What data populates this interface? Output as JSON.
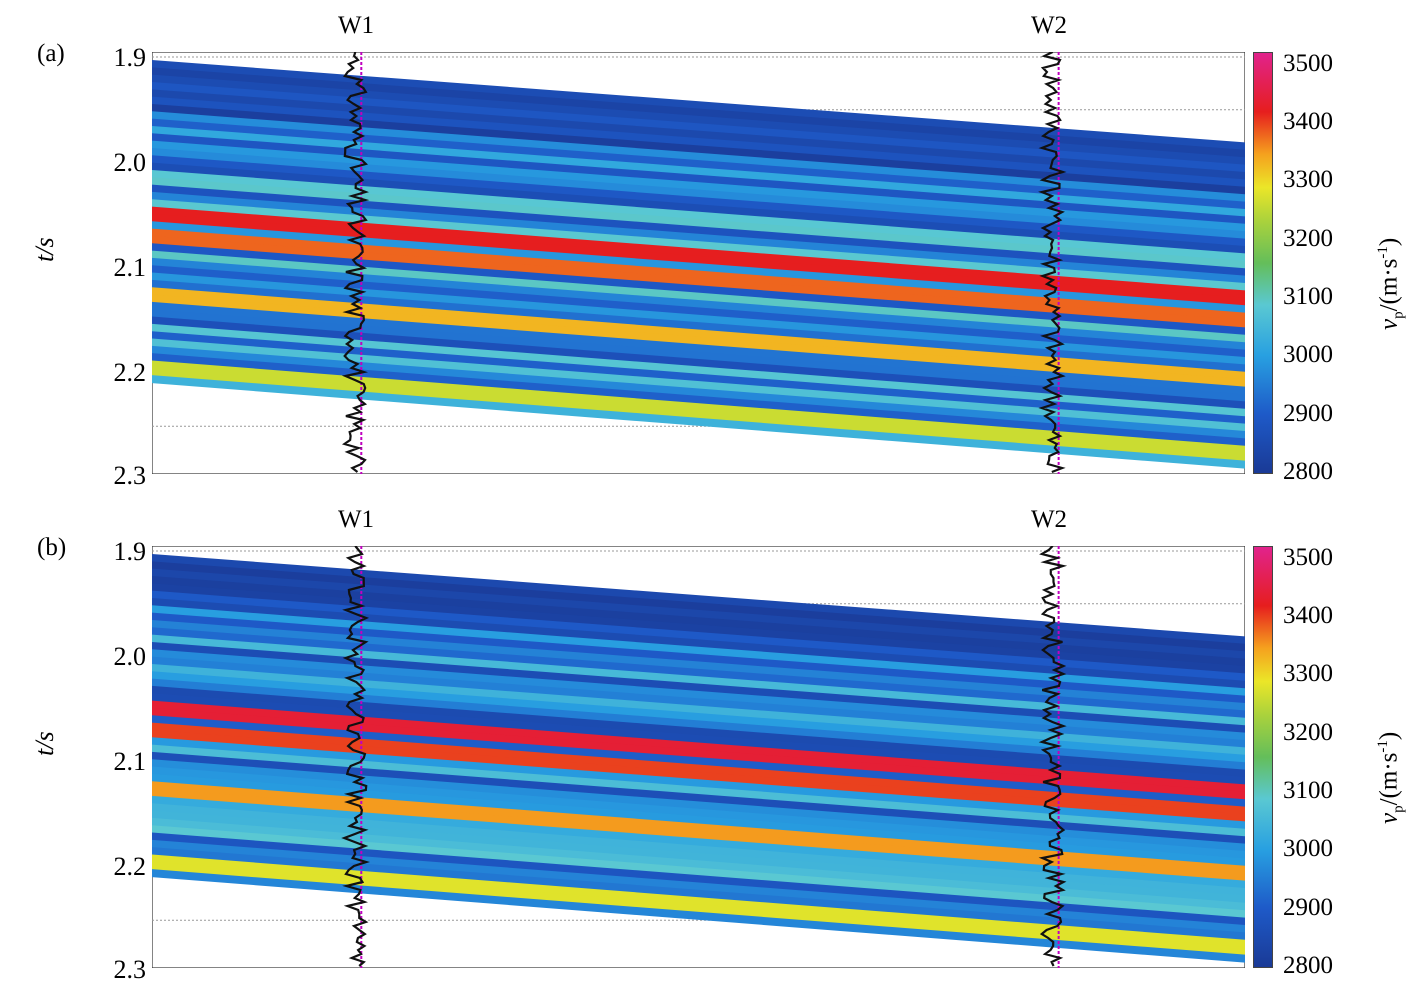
{
  "chart_data": [
    {
      "type": "heatmap",
      "panel_label": "(a)",
      "ylabel": "t/s",
      "yticks": [
        "1.9",
        "2.0",
        "2.1",
        "2.2",
        "2.3"
      ],
      "ylim": [
        2.3,
        1.9
      ],
      "wells": [
        {
          "name": "W1",
          "x_frac": 0.186
        },
        {
          "name": "W2",
          "x_frac": 0.824
        }
      ],
      "colorbar": {
        "label_var": "v",
        "label_sub": "p",
        "label_unit": "/(m·s",
        "label_sup": "-1",
        "label_close": ")",
        "ticks": [
          "3500",
          "3400",
          "3300",
          "3200",
          "3100",
          "3000",
          "2900",
          "2800"
        ],
        "range": [
          2800,
          3520
        ]
      },
      "top_time": [
        1.9,
        1.98
      ],
      "bottom_time": [
        2.2,
        2.3
      ],
      "high_velocity_layers": [
        {
          "t_at_W1": 2.045,
          "vp": 3420
        },
        {
          "t_at_W1": 2.062,
          "vp": 3380
        },
        {
          "t_at_W1": 2.117,
          "vp": 3330
        },
        {
          "t_at_W1": 2.188,
          "vp": 3260
        }
      ]
    },
    {
      "type": "heatmap",
      "panel_label": "(b)",
      "ylabel": "t/s",
      "yticks": [
        "1.9",
        "2.0",
        "2.1",
        "2.2",
        "2.3"
      ],
      "ylim": [
        2.3,
        1.9
      ],
      "wells": [
        {
          "name": "W1",
          "x_frac": 0.186
        },
        {
          "name": "W2",
          "x_frac": 0.824
        }
      ],
      "colorbar": {
        "label_var": "v",
        "label_sub": "p",
        "label_unit": "/(m·s",
        "label_sup": "-1",
        "label_close": ")",
        "ticks": [
          "3500",
          "3400",
          "3300",
          "3200",
          "3100",
          "3000",
          "2900",
          "2800"
        ],
        "range": [
          2800,
          3520
        ]
      },
      "top_time": [
        1.9,
        1.98
      ],
      "bottom_time": [
        2.2,
        2.3
      ],
      "high_velocity_layers": [
        {
          "t_at_W1": 2.045,
          "vp": 3440
        },
        {
          "t_at_W1": 2.062,
          "vp": 3400
        },
        {
          "t_at_W1": 2.117,
          "vp": 3350
        },
        {
          "t_at_W1": 2.188,
          "vp": 3280
        }
      ]
    }
  ]
}
